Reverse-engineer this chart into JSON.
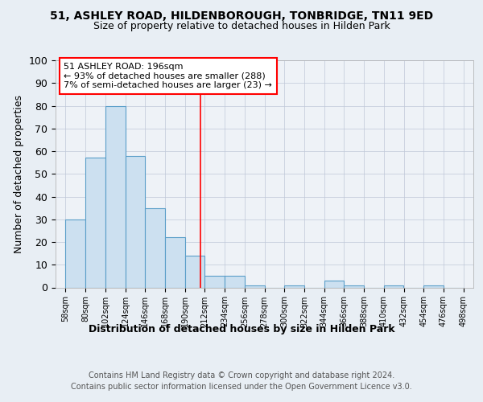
{
  "title1": "51, ASHLEY ROAD, HILDENBOROUGH, TONBRIDGE, TN11 9ED",
  "title2": "Size of property relative to detached houses in Hilden Park",
  "xlabel": "Distribution of detached houses by size in Hilden Park",
  "ylabel": "Number of detached properties",
  "footer1": "Contains HM Land Registry data © Crown copyright and database right 2024.",
  "footer2": "Contains public sector information licensed under the Open Government Licence v3.0.",
  "bins": [
    "58sqm",
    "80sqm",
    "102sqm",
    "124sqm",
    "146sqm",
    "168sqm",
    "190sqm",
    "212sqm",
    "234sqm",
    "256sqm",
    "278sqm",
    "300sqm",
    "322sqm",
    "344sqm",
    "366sqm",
    "388sqm",
    "410sqm",
    "432sqm",
    "454sqm",
    "476sqm",
    "498sqm"
  ],
  "values": [
    30,
    57,
    80,
    58,
    35,
    22,
    14,
    5,
    5,
    1,
    0,
    1,
    0,
    3,
    1,
    0,
    1,
    0,
    1,
    0
  ],
  "bar_color": "#cce0f0",
  "bar_edge_color": "#5a9ec9",
  "red_line_x": 6.78,
  "annotation_line1": "51 ASHLEY ROAD: 196sqm",
  "annotation_line2": "← 93% of detached houses are smaller (288)",
  "annotation_line3": "7% of semi-detached houses are larger (23) →",
  "annotation_box_color": "white",
  "annotation_box_edge_color": "red",
  "ylim": [
    0,
    100
  ],
  "background_color": "#e8eef4",
  "plot_bg_color": "#eef2f7",
  "grid_color": "#c0c8d8"
}
